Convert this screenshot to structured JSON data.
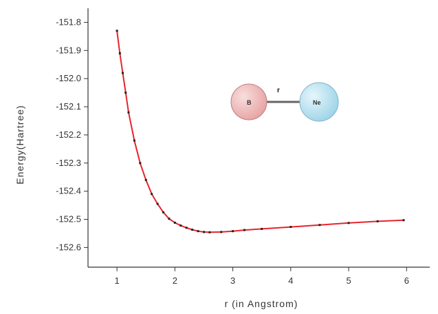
{
  "chart_data": {
    "type": "line",
    "title": "",
    "xlabel": "r (in Angstrom)",
    "ylabel": "Energy(Hartree)",
    "xlim": [
      0.5,
      6.4
    ],
    "ylim": [
      -152.67,
      -151.75
    ],
    "x_ticks": [
      1,
      2,
      3,
      4,
      5,
      6
    ],
    "y_ticks": [
      -151.8,
      -151.9,
      -152.0,
      -152.1,
      -152.2,
      -152.3,
      -152.4,
      -152.5,
      -152.6
    ],
    "x_tick_labels": [
      "1",
      "2",
      "3",
      "4",
      "5",
      "6"
    ],
    "y_tick_labels": [
      "-151.8",
      "-151.9",
      "-152.0",
      "-152.1",
      "-152.2",
      "-152.3",
      "-152.4",
      "-152.5",
      "-152.6"
    ],
    "grid": false,
    "series": [
      {
        "color": "#e8232a",
        "x": [
          1.0,
          1.05,
          1.1,
          1.15,
          1.2,
          1.3,
          1.4,
          1.5,
          1.6,
          1.7,
          1.8,
          1.9,
          2.0,
          2.1,
          2.2,
          2.3,
          2.4,
          2.5,
          2.6,
          2.8,
          3.0,
          3.2,
          3.5,
          4.0,
          4.5,
          5.0,
          5.5,
          5.95
        ],
        "y": [
          -151.83,
          -151.91,
          -151.98,
          -152.05,
          -152.12,
          -152.22,
          -152.3,
          -152.36,
          -152.41,
          -152.445,
          -152.475,
          -152.498,
          -152.512,
          -152.522,
          -152.53,
          -152.537,
          -152.542,
          -152.545,
          -152.546,
          -152.545,
          -152.542,
          -152.538,
          -152.534,
          -152.527,
          -152.52,
          -152.513,
          -152.507,
          -152.503
        ]
      }
    ],
    "inset": {
      "atoms": [
        {
          "label": "B",
          "color": "#e8a3a3"
        },
        {
          "label": "Ne",
          "color": "#9ed4e8"
        }
      ],
      "bond_label": "r"
    }
  }
}
